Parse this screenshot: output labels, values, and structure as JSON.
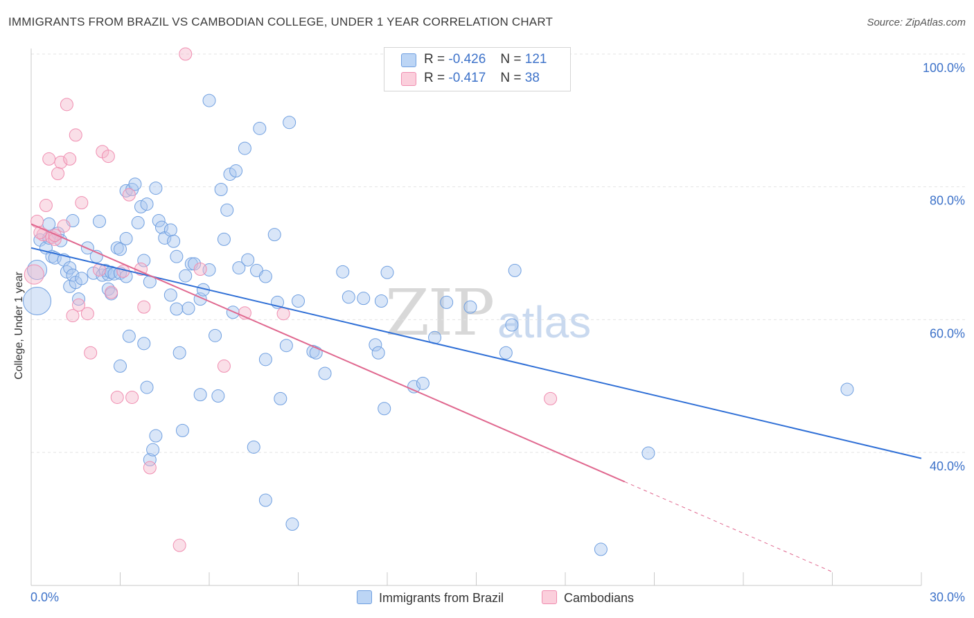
{
  "header": {
    "title": "IMMIGRANTS FROM BRAZIL VS CAMBODIAN COLLEGE, UNDER 1 YEAR CORRELATION CHART",
    "source": "Source: ZipAtlas.com"
  },
  "watermark": {
    "zip": "ZIP",
    "atlas": "atlas"
  },
  "legend": {
    "rows": [
      {
        "r_label": "R =",
        "r_value": "-0.426",
        "n_label": "N =",
        "n_value": "121",
        "color": "#aac8f0"
      },
      {
        "r_label": "R =",
        "r_value": "-0.417",
        "n_label": "N =",
        "n_value": "38",
        "color": "#f5b8cb"
      }
    ]
  },
  "bottom_legend": [
    {
      "label": "Immigrants from Brazil",
      "color": "#aac8f0"
    },
    {
      "label": "Cambodians",
      "color": "#f5b8cb"
    }
  ],
  "chart_data": {
    "type": "scatter",
    "title": "IMMIGRANTS FROM BRAZIL VS CAMBODIAN COLLEGE, UNDER 1 YEAR CORRELATION CHART",
    "xlabel": "",
    "ylabel": "College, Under 1 year",
    "xlim": [
      0,
      30
    ],
    "ylim": [
      22,
      104
    ],
    "x_tick_labels": [
      "0.0%",
      "30.0%"
    ],
    "y_ticks": [
      40,
      60,
      80,
      100
    ],
    "y_tick_labels": [
      "40.0%",
      "60.0%",
      "80.0%",
      "100.0%"
    ],
    "grid": true,
    "legend_position": "top-center",
    "series": [
      {
        "name": "Immigrants from Brazil",
        "color": "#6f9fe0",
        "line_color": "#2f6fd6",
        "r": -0.426,
        "n": 121,
        "trend": {
          "x0": 0,
          "y0": 70.8,
          "x1": 30,
          "y1": 39.1,
          "dashed_from": null
        },
        "points": [
          [
            0.2,
            62.8,
            20
          ],
          [
            0.2,
            67.5,
            14
          ],
          [
            0.3,
            72.0,
            9
          ],
          [
            0.5,
            70.8,
            9
          ],
          [
            0.6,
            72.3,
            9
          ],
          [
            0.6,
            74.4,
            9
          ],
          [
            0.7,
            69.5,
            9
          ],
          [
            0.8,
            69.3,
            9
          ],
          [
            0.9,
            73.0,
            9
          ],
          [
            1.0,
            71.9,
            9
          ],
          [
            1.1,
            69.0,
            9
          ],
          [
            1.2,
            67.2,
            9
          ],
          [
            1.3,
            67.8,
            9
          ],
          [
            1.3,
            65.0,
            9
          ],
          [
            1.4,
            66.7,
            9
          ],
          [
            1.4,
            74.9,
            9
          ],
          [
            1.5,
            65.6,
            9
          ],
          [
            1.6,
            63.1,
            9
          ],
          [
            1.7,
            66.2,
            9
          ],
          [
            1.9,
            70.8,
            9
          ],
          [
            2.1,
            67.0,
            9
          ],
          [
            2.2,
            69.5,
            9
          ],
          [
            2.3,
            74.8,
            9
          ],
          [
            2.4,
            66.7,
            9
          ],
          [
            2.5,
            67.4,
            9
          ],
          [
            2.6,
            64.6,
            9
          ],
          [
            2.6,
            66.8,
            9
          ],
          [
            2.7,
            63.9,
            9
          ],
          [
            2.7,
            67.1,
            9
          ],
          [
            2.8,
            66.9,
            9
          ],
          [
            2.9,
            70.8,
            9
          ],
          [
            3.0,
            70.6,
            9
          ],
          [
            3.0,
            67.0,
            9
          ],
          [
            3.0,
            53.0,
            9
          ],
          [
            3.2,
            79.4,
            9
          ],
          [
            3.2,
            72.2,
            9
          ],
          [
            3.2,
            66.5,
            9
          ],
          [
            3.3,
            57.5,
            9
          ],
          [
            3.4,
            79.6,
            9
          ],
          [
            3.5,
            80.4,
            9
          ],
          [
            3.6,
            74.6,
            9
          ],
          [
            3.7,
            77.0,
            9
          ],
          [
            3.8,
            68.9,
            9
          ],
          [
            3.8,
            56.4,
            9
          ],
          [
            3.9,
            77.4,
            9
          ],
          [
            3.9,
            49.8,
            9
          ],
          [
            4.0,
            65.7,
            9
          ],
          [
            4.0,
            38.9,
            9
          ],
          [
            4.1,
            40.4,
            9
          ],
          [
            4.2,
            79.8,
            9
          ],
          [
            4.2,
            42.5,
            9
          ],
          [
            4.3,
            74.9,
            9
          ],
          [
            4.4,
            73.9,
            9
          ],
          [
            4.5,
            72.3,
            9
          ],
          [
            4.7,
            63.7,
            9
          ],
          [
            4.7,
            73.5,
            9
          ],
          [
            4.8,
            71.8,
            9
          ],
          [
            4.9,
            69.5,
            9
          ],
          [
            4.9,
            61.6,
            9
          ],
          [
            5.0,
            55.0,
            9
          ],
          [
            5.1,
            43.3,
            9
          ],
          [
            5.2,
            66.6,
            9
          ],
          [
            5.3,
            61.7,
            9
          ],
          [
            5.4,
            68.4,
            9
          ],
          [
            5.5,
            68.4,
            9
          ],
          [
            5.7,
            63.1,
            9
          ],
          [
            5.7,
            48.7,
            9
          ],
          [
            5.8,
            64.5,
            9
          ],
          [
            6.0,
            93.0,
            9
          ],
          [
            6.0,
            67.5,
            9
          ],
          [
            6.2,
            57.6,
            9
          ],
          [
            6.3,
            48.5,
            9
          ],
          [
            6.4,
            79.6,
            9
          ],
          [
            6.5,
            72.1,
            9
          ],
          [
            6.6,
            76.5,
            9
          ],
          [
            6.7,
            81.9,
            9
          ],
          [
            6.8,
            61.1,
            9
          ],
          [
            6.9,
            82.4,
            9
          ],
          [
            7.0,
            67.8,
            9
          ],
          [
            7.2,
            85.8,
            9
          ],
          [
            7.3,
            69.0,
            9
          ],
          [
            7.5,
            40.8,
            9
          ],
          [
            7.6,
            67.4,
            9
          ],
          [
            7.7,
            88.8,
            9
          ],
          [
            7.9,
            66.5,
            9
          ],
          [
            7.9,
            54.0,
            9
          ],
          [
            7.9,
            32.8,
            9
          ],
          [
            8.2,
            72.8,
            9
          ],
          [
            8.3,
            62.6,
            9
          ],
          [
            8.4,
            48.1,
            9
          ],
          [
            8.6,
            56.1,
            9
          ],
          [
            8.7,
            89.7,
            9
          ],
          [
            8.8,
            29.2,
            9
          ],
          [
            9.0,
            62.8,
            9
          ],
          [
            9.5,
            55.2,
            9
          ],
          [
            9.6,
            55.0,
            9
          ],
          [
            9.9,
            51.9,
            9
          ],
          [
            10.5,
            67.2,
            9
          ],
          [
            10.7,
            63.4,
            9
          ],
          [
            11.2,
            63.2,
            9
          ],
          [
            11.6,
            56.2,
            9
          ],
          [
            11.7,
            55.0,
            9
          ],
          [
            11.8,
            62.8,
            9
          ],
          [
            11.9,
            46.6,
            9
          ],
          [
            12.0,
            67.1,
            9
          ],
          [
            12.9,
            49.9,
            9
          ],
          [
            13.2,
            50.4,
            9
          ],
          [
            13.6,
            57.3,
            9
          ],
          [
            14.0,
            62.6,
            9
          ],
          [
            14.8,
            61.9,
            9
          ],
          [
            16.0,
            55.0,
            9
          ],
          [
            16.2,
            59.2,
            9
          ],
          [
            16.3,
            67.4,
            9
          ],
          [
            19.2,
            25.4,
            9
          ],
          [
            20.8,
            39.9,
            9
          ],
          [
            27.5,
            49.5,
            9
          ]
        ]
      },
      {
        "name": "Cambodians",
        "color": "#f08db0",
        "line_color": "#e0688f",
        "r": -0.417,
        "n": 38,
        "trend": {
          "x0": 0,
          "y0": 74.4,
          "x1": 27.0,
          "y1": 22.0,
          "dashed_from": 20.0
        },
        "points": [
          [
            0.1,
            66.8,
            14
          ],
          [
            0.2,
            74.8,
            9
          ],
          [
            0.4,
            72.8,
            9
          ],
          [
            0.5,
            77.2,
            9
          ],
          [
            0.6,
            84.2,
            9
          ],
          [
            0.7,
            72.4,
            9
          ],
          [
            0.8,
            72.1,
            9
          ],
          [
            0.9,
            82.0,
            9
          ],
          [
            1.0,
            83.7,
            9
          ],
          [
            1.1,
            74.1,
            9
          ],
          [
            1.2,
            92.4,
            9
          ],
          [
            1.3,
            84.2,
            9
          ],
          [
            1.4,
            60.6,
            9
          ],
          [
            1.5,
            87.8,
            9
          ],
          [
            1.6,
            62.2,
            9
          ],
          [
            1.7,
            77.6,
            9
          ],
          [
            1.9,
            60.9,
            9
          ],
          [
            2.0,
            55.0,
            9
          ],
          [
            2.3,
            67.5,
            9
          ],
          [
            2.4,
            85.3,
            9
          ],
          [
            2.6,
            84.6,
            9
          ],
          [
            2.7,
            64.1,
            9
          ],
          [
            2.9,
            48.3,
            9
          ],
          [
            3.1,
            67.3,
            9
          ],
          [
            3.3,
            78.8,
            9
          ],
          [
            3.4,
            48.3,
            9
          ],
          [
            3.7,
            67.6,
            9
          ],
          [
            3.8,
            61.9,
            9
          ],
          [
            4.0,
            37.7,
            9
          ],
          [
            5.0,
            26.0,
            9
          ],
          [
            5.2,
            100.0,
            9
          ],
          [
            5.7,
            67.6,
            9
          ],
          [
            6.5,
            53.0,
            9
          ],
          [
            7.2,
            61.0,
            9
          ],
          [
            8.5,
            60.9,
            9
          ],
          [
            17.5,
            48.1,
            9
          ],
          [
            0.3,
            73.1,
            9
          ],
          [
            0.8,
            72.7,
            9
          ]
        ]
      }
    ]
  }
}
